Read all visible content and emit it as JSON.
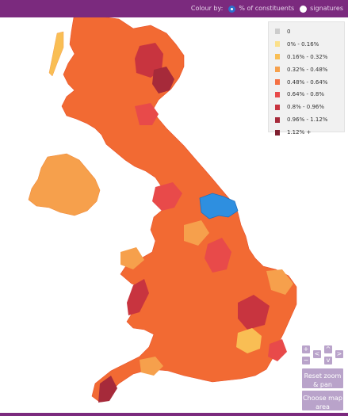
{
  "topbar": {
    "colour_by_label": "Colour by:",
    "options": [
      {
        "label": "% of constituents",
        "selected": true
      },
      {
        "label": "signatures",
        "selected": false
      }
    ]
  },
  "legend": [
    {
      "label": "0",
      "color": "#cccccc"
    },
    {
      "label": "0% - 0.16%",
      "color": "#fbe08a"
    },
    {
      "label": "0.16% - 0.32%",
      "color": "#f9be54"
    },
    {
      "label": "0.32% - 0.48%",
      "color": "#f6a04c"
    },
    {
      "label": "0.48% - 0.64%",
      "color": "#f57043"
    },
    {
      "label": "0.64% - 0.8%",
      "color": "#e84a4a"
    },
    {
      "label": "0.8% - 0.96%",
      "color": "#c8343f"
    },
    {
      "label": "0.96% - 1.12%",
      "color": "#a62a3a"
    },
    {
      "label": "1.12% +",
      "color": "#7f2030"
    }
  ],
  "map": {
    "land_color": "#f26a33",
    "border_color": "#e8522a",
    "highlight_color": "#2e8fe0",
    "highlighted_area": "selected constituency"
  },
  "controls": {
    "zoom_in": "+",
    "zoom_out": "−",
    "pan_up": "^",
    "pan_down": "v",
    "pan_left": "<",
    "pan_right": ">",
    "reset": "Reset zoom & pan",
    "choose": "Choose map area"
  }
}
